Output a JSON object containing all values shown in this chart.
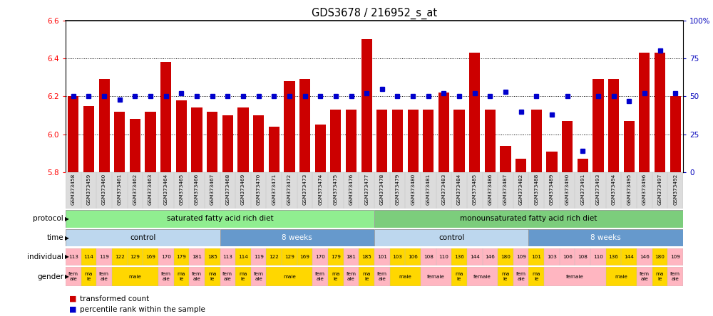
{
  "title": "GDS3678 / 216952_s_at",
  "samples": [
    "GSM373458",
    "GSM373459",
    "GSM373460",
    "GSM373461",
    "GSM373462",
    "GSM373463",
    "GSM373464",
    "GSM373465",
    "GSM373466",
    "GSM373467",
    "GSM373468",
    "GSM373469",
    "GSM373470",
    "GSM373471",
    "GSM373472",
    "GSM373473",
    "GSM373474",
    "GSM373475",
    "GSM373476",
    "GSM373477",
    "GSM373478",
    "GSM373479",
    "GSM373480",
    "GSM373481",
    "GSM373483",
    "GSM373484",
    "GSM373485",
    "GSM373486",
    "GSM373487",
    "GSM373482",
    "GSM373488",
    "GSM373489",
    "GSM373490",
    "GSM373491",
    "GSM373493",
    "GSM373494",
    "GSM373495",
    "GSM373496",
    "GSM373497",
    "GSM373492"
  ],
  "bar_values": [
    6.2,
    6.15,
    6.29,
    6.12,
    6.08,
    6.12,
    6.38,
    6.18,
    6.14,
    6.12,
    6.1,
    6.14,
    6.1,
    6.04,
    6.28,
    6.29,
    6.05,
    6.13,
    6.13,
    6.5,
    6.13,
    6.13,
    6.13,
    6.13,
    6.22,
    6.13,
    6.43,
    6.13,
    5.94,
    5.87,
    6.13,
    5.91,
    6.07,
    5.87,
    6.29,
    6.29,
    6.07,
    6.43,
    6.43,
    6.2
  ],
  "percentile_values": [
    50,
    50,
    50,
    48,
    50,
    50,
    50,
    52,
    50,
    50,
    50,
    50,
    50,
    50,
    50,
    50,
    50,
    50,
    50,
    52,
    55,
    50,
    50,
    50,
    52,
    50,
    52,
    50,
    53,
    40,
    50,
    38,
    50,
    14,
    50,
    50,
    47,
    52,
    80,
    52
  ],
  "ylim_left": [
    5.8,
    6.6
  ],
  "ylim_right": [
    0,
    100
  ],
  "yticks_left": [
    5.8,
    6.0,
    6.2,
    6.4,
    6.6
  ],
  "yticks_right": [
    0,
    25,
    50,
    75,
    100
  ],
  "ytick_labels_right": [
    "0",
    "25",
    "50",
    "75",
    "100%"
  ],
  "bar_color": "#CC0000",
  "dot_color": "#0000CC",
  "protocol_labels": [
    "saturated fatty acid rich diet",
    "monounsaturated fatty acid rich diet"
  ],
  "protocol_color_sat": "#90EE90",
  "protocol_color_mono": "#7CCD7C",
  "time_segments": [
    {
      "start": 0,
      "end": 10,
      "label": "control",
      "color": "#BDD7EE"
    },
    {
      "start": 10,
      "end": 20,
      "label": "8 weeks",
      "color": "#6699CC"
    },
    {
      "start": 20,
      "end": 30,
      "label": "control",
      "color": "#BDD7EE"
    },
    {
      "start": 30,
      "end": 40,
      "label": "8 weeks",
      "color": "#6699CC"
    }
  ],
  "individual_numbers": [
    "113",
    "114",
    "119",
    "122",
    "129",
    "169",
    "170",
    "179",
    "181",
    "185",
    "113",
    "114",
    "119",
    "122",
    "129",
    "169",
    "170",
    "179",
    "181",
    "185",
    "101",
    "103",
    "106",
    "108",
    "110",
    "136",
    "144",
    "146",
    "180",
    "109",
    "101",
    "103",
    "106",
    "108",
    "110",
    "136",
    "144",
    "146",
    "180",
    "109"
  ],
  "gender_data": [
    "female",
    "male",
    "female",
    "male",
    "male",
    "male",
    "female",
    "male",
    "female",
    "male",
    "female",
    "male",
    "female",
    "male",
    "male",
    "male",
    "female",
    "male",
    "female",
    "male",
    "female",
    "male",
    "male",
    "female",
    "female",
    "male",
    "female",
    "female",
    "male",
    "female",
    "male",
    "female",
    "female",
    "female",
    "female",
    "male",
    "male",
    "female",
    "male",
    "female"
  ],
  "gender_male_color": "#FFD700",
  "gender_female_color": "#FFB6C1",
  "indiv_colors": [
    "#FFB6C1",
    "#FFD700",
    "#FFB6C1",
    "#FFD700",
    "#FFD700",
    "#FFD700",
    "#FFB6C1",
    "#FFD700",
    "#FFB6C1",
    "#FFD700",
    "#FFB6C1",
    "#FFD700",
    "#FFB6C1",
    "#FFD700",
    "#FFD700",
    "#FFD700",
    "#FFB6C1",
    "#FFD700",
    "#FFB6C1",
    "#FFD700",
    "#FFB6C1",
    "#FFD700",
    "#FFD700",
    "#FFB6C1",
    "#FFB6C1",
    "#FFD700",
    "#FFB6C1",
    "#FFB6C1",
    "#FFD700",
    "#FFB6C1",
    "#FFD700",
    "#FFB6C1",
    "#FFB6C1",
    "#FFB6C1",
    "#FFB6C1",
    "#FFD700",
    "#FFD700",
    "#FFB6C1",
    "#FFD700",
    "#FFB6C1"
  ]
}
